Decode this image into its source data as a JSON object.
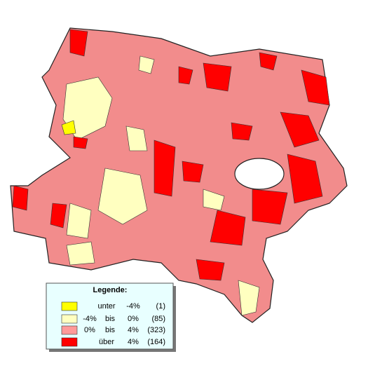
{
  "legend": {
    "title": "Legende:",
    "items": [
      {
        "parts": [
          "unter",
          "-4%"
        ],
        "count": "(1)",
        "color": "#ffff00"
      },
      {
        "parts": [
          "-4%",
          "bis",
          "0%"
        ],
        "count": "(85)",
        "color": "#ffffc0"
      },
      {
        "parts": [
          "0%",
          "bis",
          "4%"
        ],
        "count": "(323)",
        "color": "#ff9999"
      },
      {
        "parts": [
          "über",
          "4%"
        ],
        "count": "(164)",
        "color": "#ff0000"
      }
    ]
  }
}
